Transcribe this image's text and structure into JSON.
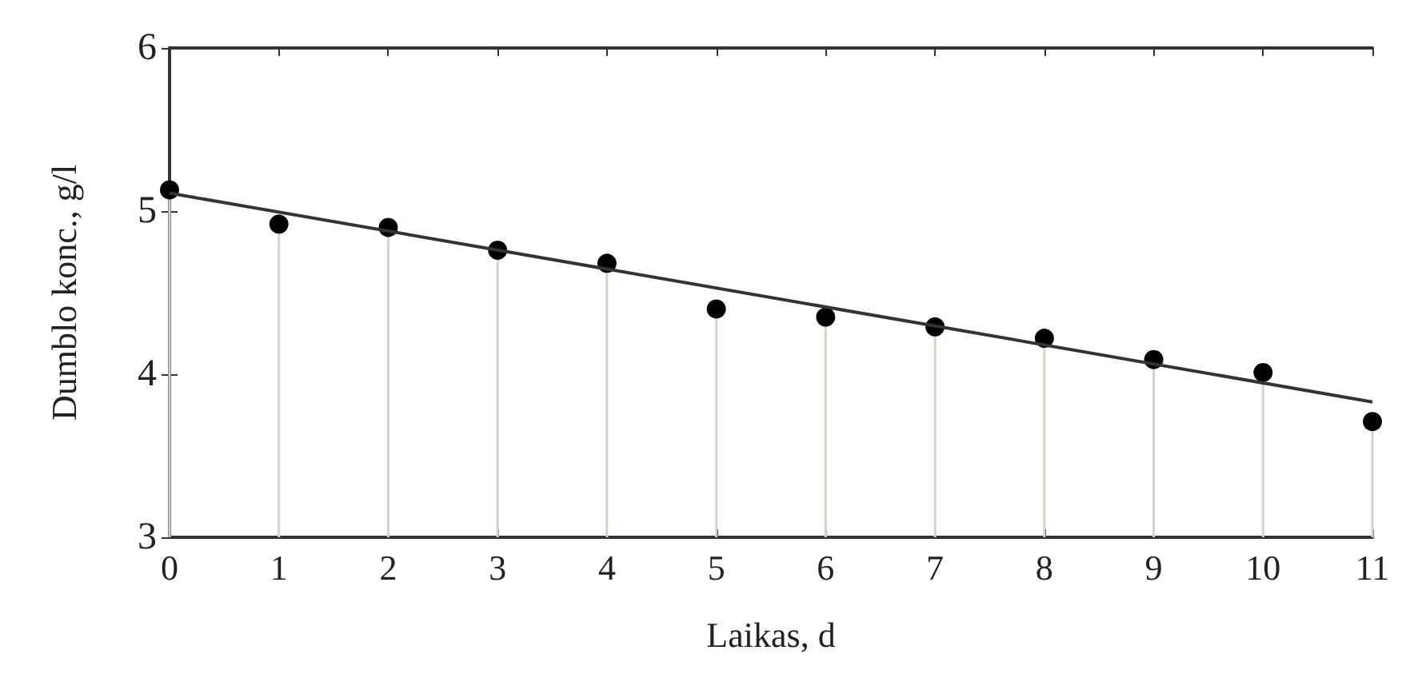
{
  "chart_data": {
    "type": "lollipop",
    "xlabel": "Laikas, d",
    "ylabel": "Dumblo konc., g/l",
    "x": [
      0,
      1,
      2,
      3,
      4,
      5,
      6,
      7,
      8,
      9,
      10,
      11
    ],
    "series": [
      {
        "color": "#000000",
        "marker": "circle",
        "values": [
          5.13,
          4.92,
          4.9,
          4.76,
          4.68,
          4.4,
          4.35,
          4.29,
          4.22,
          4.09,
          4.01,
          3.71
        ]
      },
      {
        "type": "line",
        "color": "#333333",
        "x": [
          0,
          11
        ],
        "values": [
          5.11,
          3.83
        ]
      }
    ],
    "xlim": [
      0,
      11
    ],
    "xticks": [
      0,
      1,
      2,
      3,
      4,
      5,
      6,
      7,
      8,
      9,
      10,
      11
    ],
    "ylim": [
      3,
      6
    ],
    "yticks": [
      3,
      4,
      5,
      6
    ],
    "grid": false
  }
}
